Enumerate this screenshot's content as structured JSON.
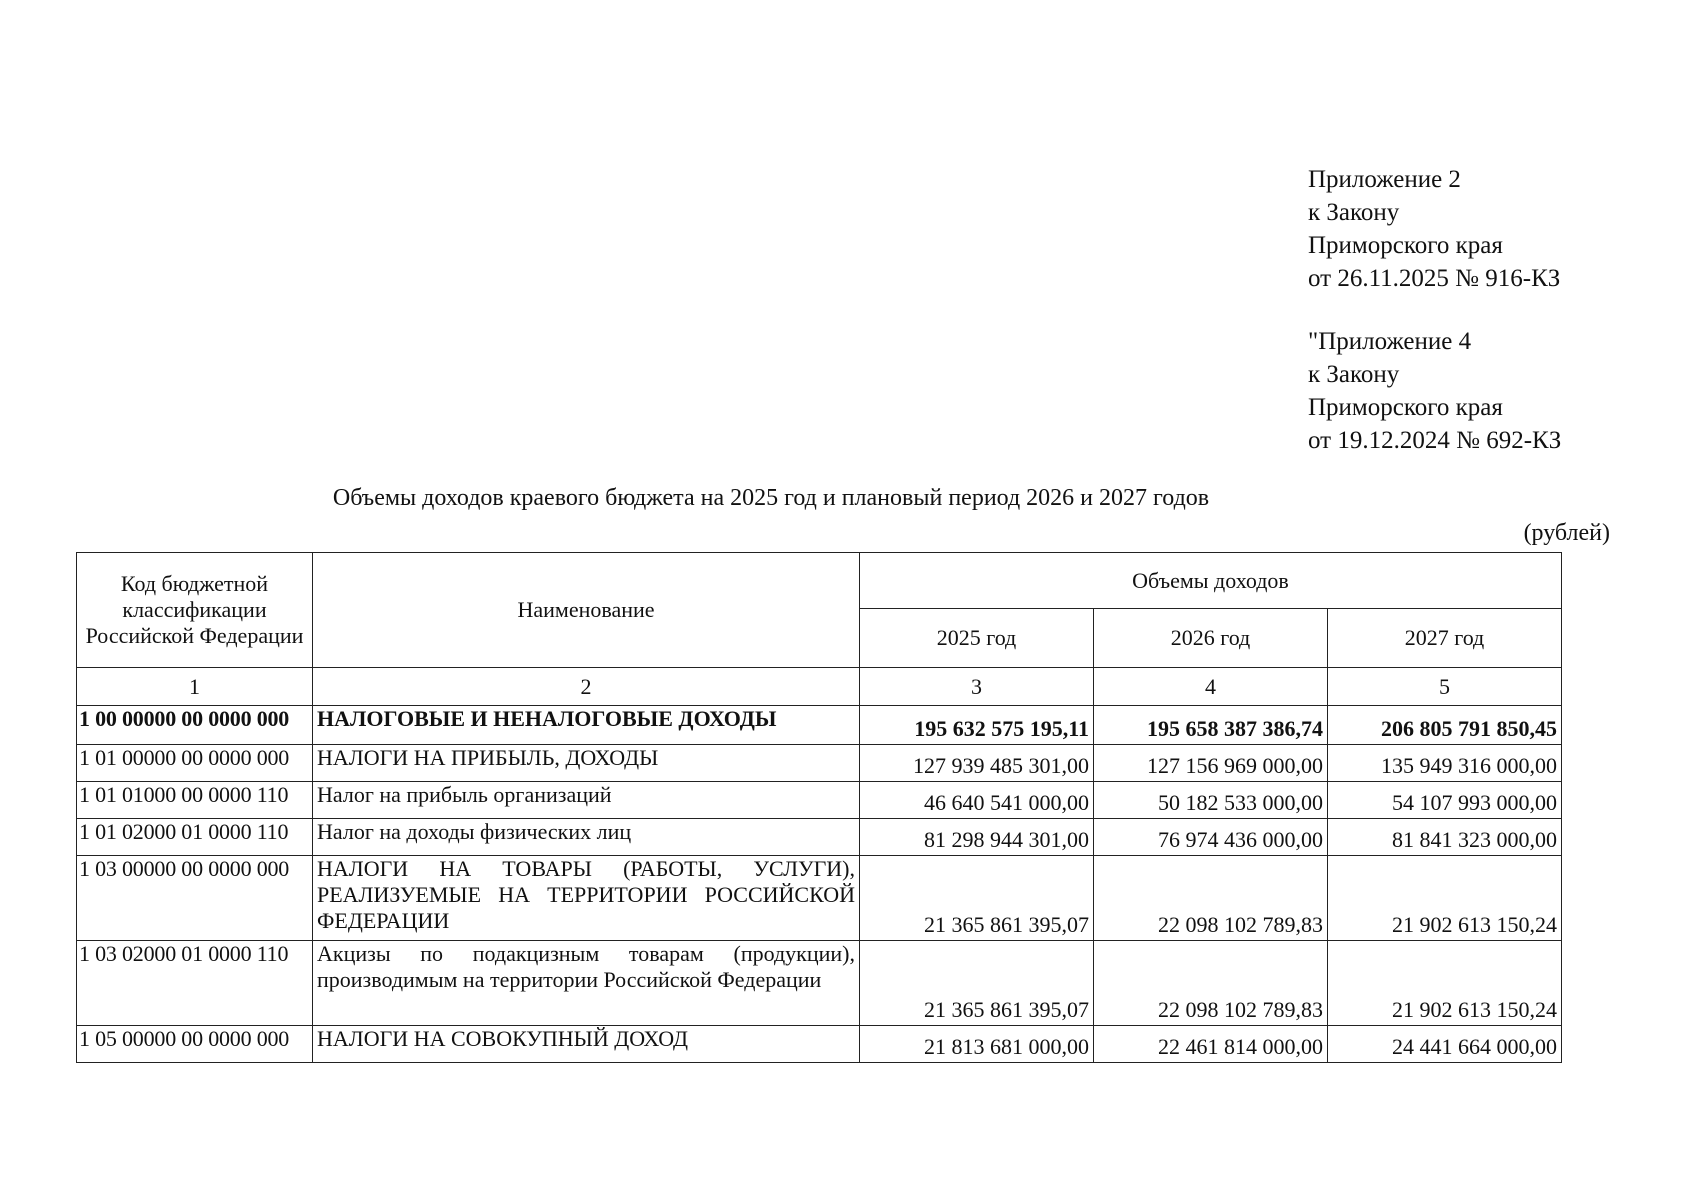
{
  "appendix_current": [
    "Приложение 2",
    "к Закону",
    "Приморского края",
    "от 26.11.2025 № 916-КЗ"
  ],
  "appendix_previous": [
    "\"Приложение 4",
    "к Закону",
    "Приморского края",
    "от 19.12.2024 № 692-КЗ"
  ],
  "title": "Объемы доходов краевого бюджета на 2025 год и плановый период 2026 и 2027 годов",
  "units": "(рублей)",
  "table": {
    "headers": {
      "code": "Код бюджетной классификации Российской Федерации",
      "name": "Наименование",
      "volumes": "Объемы доходов",
      "years": [
        "2025 год",
        "2026 год",
        "2027 год"
      ],
      "numbers": [
        "1",
        "2",
        "3",
        "4",
        "5"
      ]
    },
    "rows": [
      {
        "code": "1 00 00000 00 0000 000",
        "name": "НАЛОГОВЫЕ И НЕНАЛОГОВЫЕ ДОХОДЫ",
        "y2025": "195 632 575 195,11",
        "y2026": "195 658 387 386,74",
        "y2027": "206 805 791 850,45",
        "bold": true
      },
      {
        "code": "1 01 00000 00 0000 000",
        "name": "НАЛОГИ НА ПРИБЫЛЬ, ДОХОДЫ",
        "y2025": "127 939 485 301,00",
        "y2026": "127 156 969 000,00",
        "y2027": "135 949 316 000,00"
      },
      {
        "code": "1 01 01000 00 0000 110",
        "name": "Налог на прибыль организаций",
        "y2025": "46 640 541 000,00",
        "y2026": "50 182 533 000,00",
        "y2027": "54 107 993 000,00"
      },
      {
        "code": "1 01 02000 01 0000 110",
        "name": "Налог на доходы физических лиц",
        "y2025": "81 298 944 301,00",
        "y2026": "76 974 436 000,00",
        "y2027": "81 841 323 000,00"
      },
      {
        "code": "1 03 00000 00 0000 000",
        "name": "НАЛОГИ НА ТОВАРЫ (РАБОТЫ, УСЛУГИ), РЕАЛИЗУЕМЫЕ НА ТЕРРИТОРИИ РОССИЙСКОЙ ФЕДЕРАЦИИ",
        "y2025": "21 365 861 395,07",
        "y2026": "22 098 102 789,83",
        "y2027": "21 902 613 150,24"
      },
      {
        "code": "1 03 02000 01 0000 110",
        "name": "Акцизы по подакцизным товарам (продукции), производимым на территории Российской Федерации",
        "y2025": "21 365 861 395,07",
        "y2026": "22 098 102 789,83",
        "y2027": "21 902 613 150,24"
      },
      {
        "code": "1 05 00000 00 0000 000",
        "name": "НАЛОГИ НА СОВОКУПНЫЙ ДОХОД",
        "y2025": "21 813 681 000,00",
        "y2026": "22 461 814 000,00",
        "y2027": "24 441 664 000,00"
      }
    ]
  }
}
